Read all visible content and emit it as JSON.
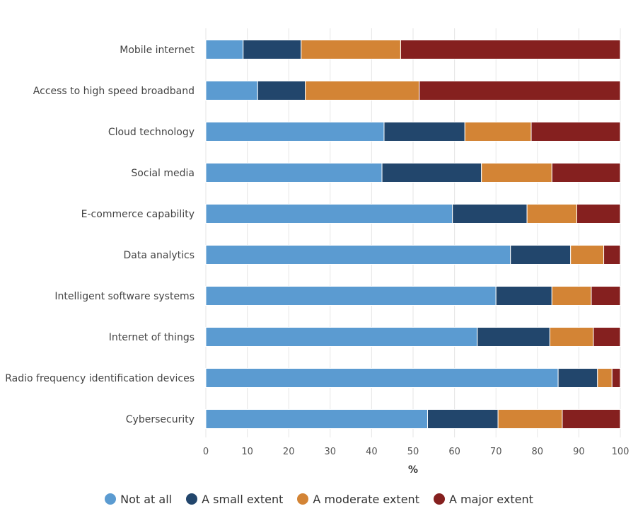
{
  "chart_data": {
    "type": "bar",
    "orientation": "horizontal",
    "stacked": true,
    "categories": [
      "Mobile internet",
      "Access to high speed broadband",
      "Cloud technology",
      "Social media",
      "E-commerce capability",
      "Data analytics",
      "Intelligent software systems",
      "Internet of things",
      "Radio frequency identification devices",
      "Cybersecurity"
    ],
    "series": [
      {
        "name": "Not at all",
        "color": "#5b9bd1",
        "values": [
          9,
          12.5,
          43,
          42.5,
          59.5,
          73.5,
          70,
          65.5,
          85,
          53.5
        ]
      },
      {
        "name": "A small extent",
        "color": "#22466c",
        "values": [
          14,
          11.5,
          19.5,
          24,
          18,
          14.5,
          13.5,
          17.5,
          9.5,
          17
        ]
      },
      {
        "name": "A moderate extent",
        "color": "#d38435",
        "values": [
          24,
          27.5,
          16,
          17,
          12,
          8,
          9.5,
          10.5,
          3.5,
          15.5
        ]
      },
      {
        "name": "A major extent",
        "color": "#85201f",
        "values": [
          53,
          48.5,
          21.5,
          16.5,
          10.5,
          4,
          7,
          6.5,
          2,
          14
        ]
      }
    ],
    "xlabel": "%",
    "ylabel": "",
    "title": "",
    "xlim": [
      0,
      100
    ],
    "xticks": [
      "0",
      "10",
      "20",
      "30",
      "40",
      "50",
      "60",
      "70",
      "80",
      "90",
      "100"
    ],
    "grid": "vertical",
    "legend_position": "bottom"
  }
}
